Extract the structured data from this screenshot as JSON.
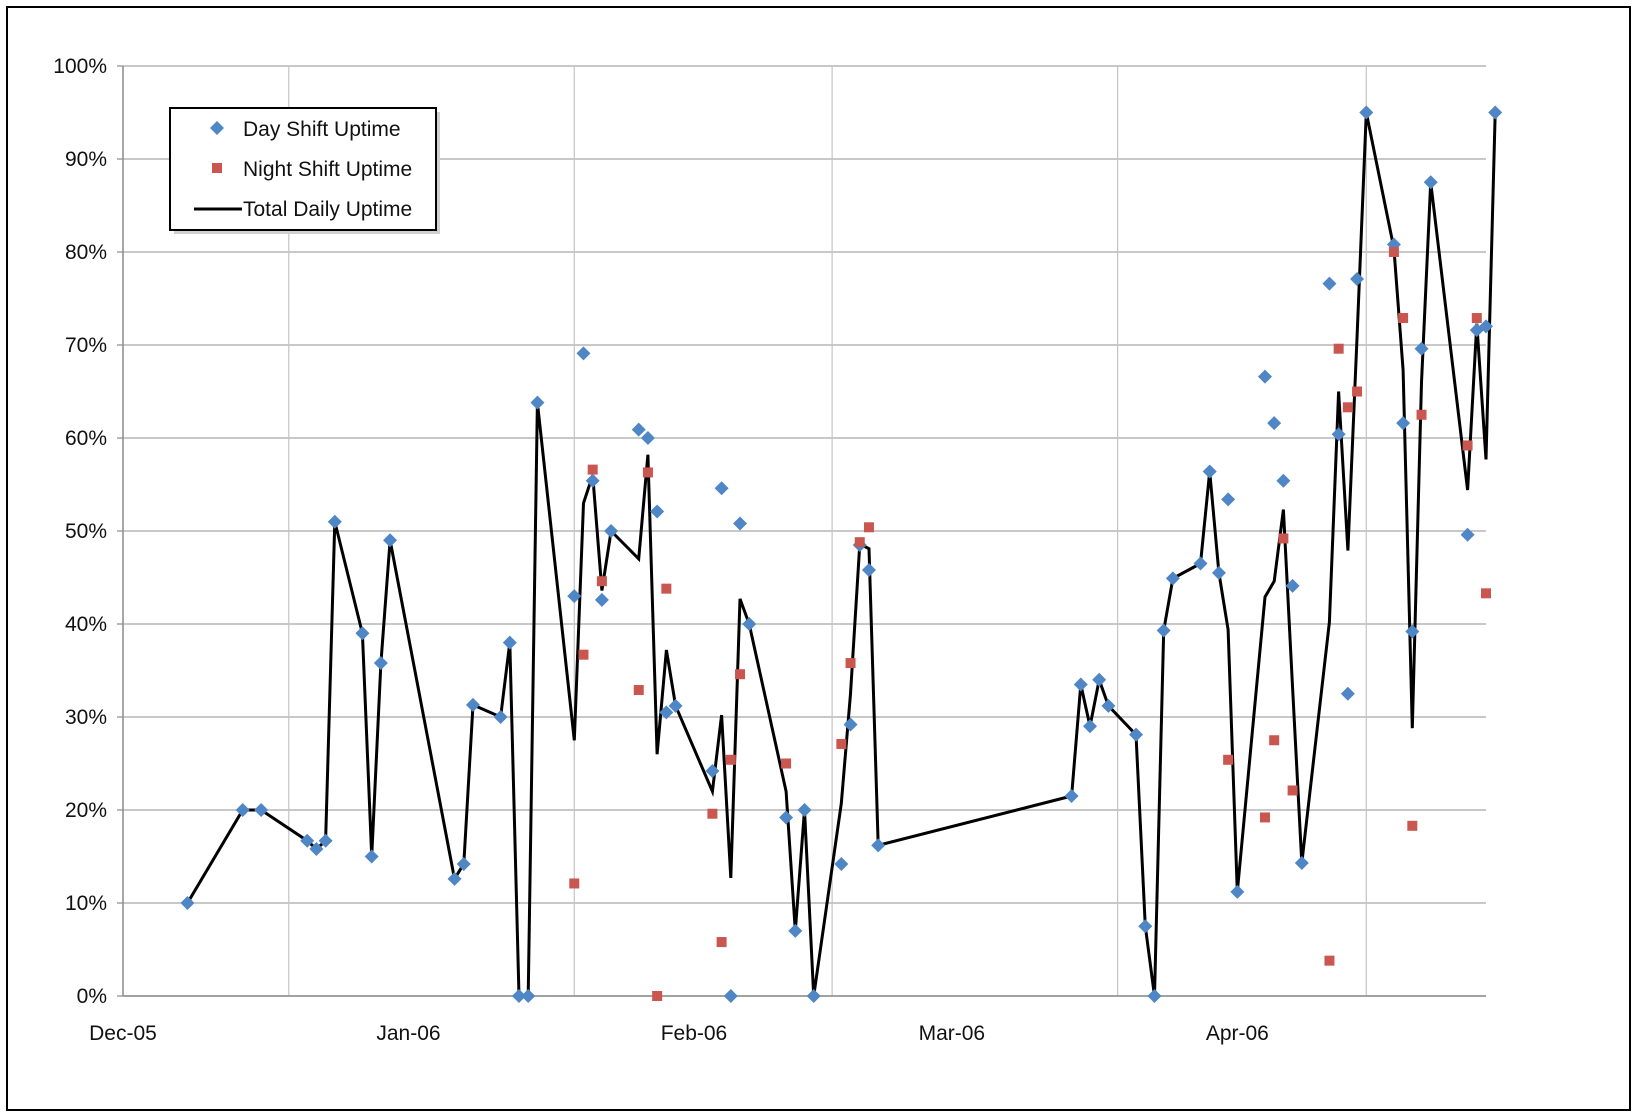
{
  "chart_data": {
    "type": "scatter",
    "title": "",
    "xlabel": "",
    "ylabel": "",
    "x_range": [
      "2005-12-01",
      "2006-04-28"
    ],
    "ylim": [
      0,
      100
    ],
    "y_unit": "%",
    "y_ticks": [
      "0%",
      "10%",
      "20%",
      "30%",
      "40%",
      "50%",
      "60%",
      "70%",
      "80%",
      "90%",
      "100%"
    ],
    "x_ticks": [
      {
        "date": "2005-12-01",
        "label": "Dec-05"
      },
      {
        "date": "2006-01-01",
        "label": "Jan-06"
      },
      {
        "date": "2006-02-01",
        "label": "Feb-06"
      },
      {
        "date": "2006-03-01",
        "label": "Mar-06"
      },
      {
        "date": "2006-04-01",
        "label": "Apr-06"
      }
    ],
    "vertical_gridline_dates": [
      "2005-12-19",
      "2006-01-19",
      "2006-02-16",
      "2006-03-19",
      "2006-04-15"
    ],
    "grid": true,
    "legend_position": "top-left",
    "legend": [
      "Day Shift Uptime",
      "Night Shift Uptime",
      "Total Daily Uptime"
    ],
    "series": [
      {
        "name": "Day Shift Uptime",
        "kind": "marker",
        "marker": "diamond",
        "color": "#4F86C6",
        "points": [
          [
            "2005-12-08",
            10
          ],
          [
            "2005-12-14",
            20
          ],
          [
            "2005-12-16",
            20
          ],
          [
            "2005-12-21",
            16.7
          ],
          [
            "2005-12-22",
            15.8
          ],
          [
            "2005-12-23",
            16.7
          ],
          [
            "2005-12-24",
            51
          ],
          [
            "2005-12-27",
            39
          ],
          [
            "2005-12-28",
            15
          ],
          [
            "2005-12-29",
            35.8
          ],
          [
            "2005-12-30",
            49
          ],
          [
            "2006-01-06",
            12.6
          ],
          [
            "2006-01-07",
            14.2
          ],
          [
            "2006-01-08",
            31.3
          ],
          [
            "2006-01-11",
            30
          ],
          [
            "2006-01-12",
            38
          ],
          [
            "2006-01-13",
            0
          ],
          [
            "2006-01-14",
            0
          ],
          [
            "2006-01-15",
            63.8
          ],
          [
            "2006-01-19",
            43
          ],
          [
            "2006-01-20",
            69.1
          ],
          [
            "2006-01-21",
            55.4
          ],
          [
            "2006-01-22",
            42.6
          ],
          [
            "2006-01-23",
            50
          ],
          [
            "2006-01-26",
            60.9
          ],
          [
            "2006-01-27",
            60
          ],
          [
            "2006-01-28",
            52.1
          ],
          [
            "2006-01-29",
            30.5
          ],
          [
            "2006-01-30",
            31.2
          ],
          [
            "2006-02-03",
            24.2
          ],
          [
            "2006-02-04",
            54.6
          ],
          [
            "2006-02-05",
            0
          ],
          [
            "2006-02-06",
            50.8
          ],
          [
            "2006-02-07",
            40
          ],
          [
            "2006-02-11",
            19.2
          ],
          [
            "2006-02-12",
            7
          ],
          [
            "2006-02-13",
            20
          ],
          [
            "2006-02-14",
            0
          ],
          [
            "2006-02-17",
            14.2
          ],
          [
            "2006-02-18",
            29.2
          ],
          [
            "2006-02-19",
            48.5
          ],
          [
            "2006-02-20",
            45.8
          ],
          [
            "2006-02-21",
            16.2
          ],
          [
            "2006-03-14",
            21.5
          ],
          [
            "2006-03-15",
            33.5
          ],
          [
            "2006-03-16",
            29
          ],
          [
            "2006-03-17",
            34
          ],
          [
            "2006-03-18",
            31.2
          ],
          [
            "2006-03-21",
            28.1
          ],
          [
            "2006-03-22",
            7.5
          ],
          [
            "2006-03-23",
            0
          ],
          [
            "2006-03-24",
            39.3
          ],
          [
            "2006-03-25",
            44.9
          ],
          [
            "2006-03-28",
            46.5
          ],
          [
            "2006-03-29",
            56.4
          ],
          [
            "2006-03-30",
            45.5
          ],
          [
            "2006-03-31",
            53.4
          ],
          [
            "2006-04-01",
            11.2
          ],
          [
            "2006-04-04",
            66.6
          ],
          [
            "2006-04-05",
            61.6
          ],
          [
            "2006-04-06",
            55.4
          ],
          [
            "2006-04-07",
            44.1
          ],
          [
            "2006-04-08",
            14.3
          ],
          [
            "2006-04-11",
            76.6
          ],
          [
            "2006-04-12",
            60.4
          ],
          [
            "2006-04-13",
            32.5
          ],
          [
            "2006-04-14",
            77.1
          ],
          [
            "2006-04-15",
            95
          ],
          [
            "2006-04-18",
            80.8
          ],
          [
            "2006-04-19",
            61.6
          ],
          [
            "2006-04-20",
            39.2
          ],
          [
            "2006-04-21",
            69.6
          ],
          [
            "2006-04-22",
            87.5
          ],
          [
            "2006-04-26",
            49.6
          ],
          [
            "2006-04-27",
            71.6
          ],
          [
            "2006-04-28",
            72
          ],
          [
            "2006-04-29",
            95
          ]
        ]
      },
      {
        "name": "Night Shift Uptime",
        "kind": "marker",
        "marker": "square",
        "color": "#C9574F",
        "points": [
          [
            "2006-01-19",
            12.1
          ],
          [
            "2006-01-20",
            36.7
          ],
          [
            "2006-01-21",
            56.6
          ],
          [
            "2006-01-22",
            44.6
          ],
          [
            "2006-01-26",
            32.9
          ],
          [
            "2006-01-27",
            56.3
          ],
          [
            "2006-01-28",
            0
          ],
          [
            "2006-01-29",
            43.8
          ],
          [
            "2006-02-03",
            19.6
          ],
          [
            "2006-02-04",
            5.8
          ],
          [
            "2006-02-05",
            25.4
          ],
          [
            "2006-02-06",
            34.6
          ],
          [
            "2006-02-11",
            25
          ],
          [
            "2006-02-17",
            27.1
          ],
          [
            "2006-02-18",
            35.8
          ],
          [
            "2006-02-19",
            48.8
          ],
          [
            "2006-02-20",
            50.4
          ],
          [
            "2006-03-31",
            25.4
          ],
          [
            "2006-04-04",
            19.2
          ],
          [
            "2006-04-05",
            27.5
          ],
          [
            "2006-04-06",
            49.2
          ],
          [
            "2006-04-07",
            22.1
          ],
          [
            "2006-04-11",
            3.8
          ],
          [
            "2006-04-12",
            69.6
          ],
          [
            "2006-04-13",
            63.3
          ],
          [
            "2006-04-14",
            65
          ],
          [
            "2006-04-18",
            80
          ],
          [
            "2006-04-19",
            72.9
          ],
          [
            "2006-04-20",
            18.3
          ],
          [
            "2006-04-21",
            62.5
          ],
          [
            "2006-04-26",
            59.2
          ],
          [
            "2006-04-27",
            72.9
          ],
          [
            "2006-04-28",
            43.3
          ]
        ]
      },
      {
        "name": "Total Daily Uptime",
        "kind": "line",
        "color": "#000000",
        "points": [
          [
            "2005-12-08",
            10
          ],
          [
            "2005-12-14",
            20
          ],
          [
            "2005-12-16",
            20
          ],
          [
            "2005-12-21",
            16.7
          ],
          [
            "2005-12-22",
            15.8
          ],
          [
            "2005-12-23",
            16.7
          ],
          [
            "2005-12-24",
            51
          ],
          [
            "2005-12-27",
            39
          ],
          [
            "2005-12-28",
            15
          ],
          [
            "2005-12-29",
            35.8
          ],
          [
            "2005-12-30",
            49
          ],
          [
            "2006-01-06",
            12.6
          ],
          [
            "2006-01-07",
            14.2
          ],
          [
            "2006-01-08",
            31.3
          ],
          [
            "2006-01-11",
            30
          ],
          [
            "2006-01-12",
            38
          ],
          [
            "2006-01-13",
            0
          ],
          [
            "2006-01-14",
            0
          ],
          [
            "2006-01-15",
            63.8
          ],
          [
            "2006-01-19",
            27.5
          ],
          [
            "2006-01-20",
            53
          ],
          [
            "2006-01-21",
            56
          ],
          [
            "2006-01-22",
            43.6
          ],
          [
            "2006-01-23",
            50
          ],
          [
            "2006-01-26",
            47
          ],
          [
            "2006-01-27",
            58.2
          ],
          [
            "2006-01-28",
            26
          ],
          [
            "2006-01-29",
            37.2
          ],
          [
            "2006-01-30",
            31.2
          ],
          [
            "2006-02-03",
            22
          ],
          [
            "2006-02-04",
            30.2
          ],
          [
            "2006-02-05",
            12.7
          ],
          [
            "2006-02-06",
            42.7
          ],
          [
            "2006-02-07",
            40
          ],
          [
            "2006-02-11",
            22
          ],
          [
            "2006-02-12",
            7
          ],
          [
            "2006-02-13",
            20
          ],
          [
            "2006-02-14",
            0
          ],
          [
            "2006-02-17",
            20.7
          ],
          [
            "2006-02-18",
            32.5
          ],
          [
            "2006-02-19",
            48.6
          ],
          [
            "2006-02-20",
            48.1
          ],
          [
            "2006-02-21",
            16.2
          ],
          [
            "2006-03-14",
            21.5
          ],
          [
            "2006-03-15",
            33.5
          ],
          [
            "2006-03-16",
            29
          ],
          [
            "2006-03-17",
            34
          ],
          [
            "2006-03-18",
            31.2
          ],
          [
            "2006-03-21",
            28.1
          ],
          [
            "2006-03-22",
            7.5
          ],
          [
            "2006-03-23",
            0
          ],
          [
            "2006-03-24",
            39.3
          ],
          [
            "2006-03-25",
            44.9
          ],
          [
            "2006-03-28",
            46.5
          ],
          [
            "2006-03-29",
            56.4
          ],
          [
            "2006-03-30",
            45.5
          ],
          [
            "2006-03-31",
            39.4
          ],
          [
            "2006-04-01",
            11.2
          ],
          [
            "2006-04-04",
            42.9
          ],
          [
            "2006-04-05",
            44.6
          ],
          [
            "2006-04-06",
            52.3
          ],
          [
            "2006-04-07",
            33.1
          ],
          [
            "2006-04-08",
            14.3
          ],
          [
            "2006-04-11",
            40.2
          ],
          [
            "2006-04-12",
            65
          ],
          [
            "2006-04-13",
            47.9
          ],
          [
            "2006-04-14",
            71
          ],
          [
            "2006-04-15",
            95
          ],
          [
            "2006-04-18",
            80.4
          ],
          [
            "2006-04-19",
            67.3
          ],
          [
            "2006-04-20",
            28.8
          ],
          [
            "2006-04-21",
            66
          ],
          [
            "2006-04-22",
            87.5
          ],
          [
            "2006-04-26",
            54.4
          ],
          [
            "2006-04-27",
            72.3
          ],
          [
            "2006-04-28",
            57.7
          ],
          [
            "2006-04-29",
            95
          ]
        ]
      }
    ]
  }
}
